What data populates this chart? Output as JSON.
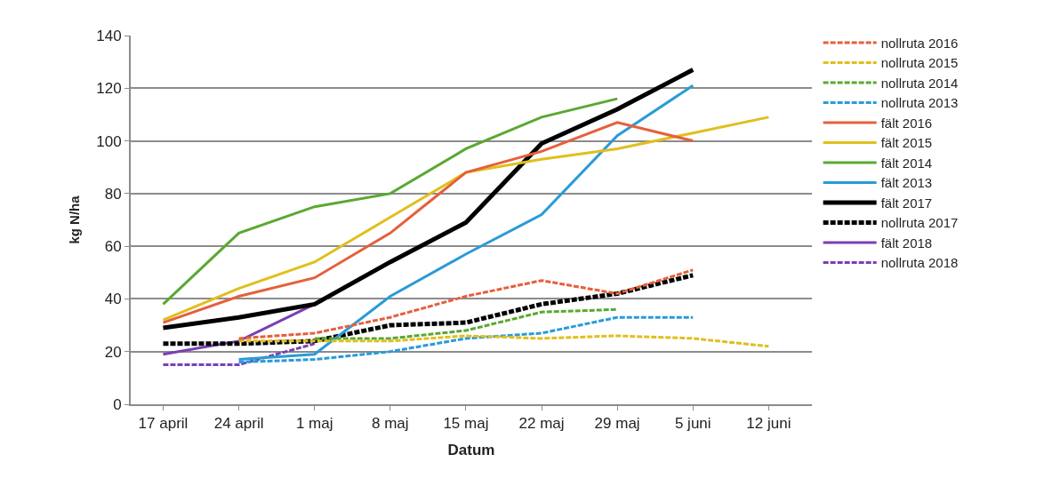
{
  "chart_data": {
    "type": "line",
    "xlabel": "Datum",
    "ylabel": "kg N/ha",
    "x": [
      "--04-17",
      "--04-24",
      "--05-01",
      "--05-08",
      "--05-15",
      "--05-22",
      "--05-29",
      "--06-05",
      "--06-12"
    ],
    "xlim": [
      "--04-14",
      "--06-16"
    ],
    "xticks": [
      {
        "value": "--04-17",
        "label": "17 april"
      },
      {
        "value": "--04-24",
        "label": "24 april"
      },
      {
        "value": "--05-01",
        "label": "1 maj"
      },
      {
        "value": "--05-08",
        "label": "8 maj"
      },
      {
        "value": "--05-15",
        "label": "15 maj"
      },
      {
        "value": "--05-22",
        "label": "22 maj"
      },
      {
        "value": "--05-29",
        "label": "29 maj"
      },
      {
        "value": "--06-05",
        "label": "5 juni"
      },
      {
        "value": "--06-12",
        "label": "12 juni"
      }
    ],
    "ylim": [
      0,
      140
    ],
    "yticks": [
      0,
      20,
      40,
      60,
      80,
      100,
      120,
      140
    ],
    "grid": "y",
    "legend": "right",
    "marker": "none",
    "series": [
      {
        "name": "nollruta 2016",
        "color": "#e5603b",
        "line_style": "dashed",
        "values": [
          null,
          25,
          27,
          33,
          41,
          47,
          42,
          51,
          null
        ]
      },
      {
        "name": "nollruta 2015",
        "color": "#e0bf1c",
        "line_style": "dashed",
        "values": [
          null,
          24,
          24,
          24,
          26,
          25,
          26,
          25,
          22
        ]
      },
      {
        "name": "nollruta 2014",
        "color": "#5aa832",
        "line_style": "dashed",
        "values": [
          null,
          null,
          25,
          25,
          28,
          35,
          36,
          null,
          null
        ]
      },
      {
        "name": "nollruta 2013",
        "color": "#2a9bd6",
        "line_style": "dashed",
        "values": [
          null,
          16,
          17,
          20,
          25,
          27,
          33,
          33,
          null
        ]
      },
      {
        "name": "fält 2016",
        "color": "#e5603b",
        "line_style": "solid",
        "values": [
          31,
          41,
          48,
          65,
          88,
          96,
          107,
          100,
          null
        ]
      },
      {
        "name": "fält 2015",
        "color": "#e0bf1c",
        "line_style": "solid",
        "values": [
          32,
          44,
          54,
          71,
          88,
          93,
          97,
          103,
          109
        ]
      },
      {
        "name": "fält 2014",
        "color": "#5aa832",
        "line_style": "solid",
        "values": [
          38,
          65,
          75,
          80,
          97,
          109,
          116,
          null,
          null
        ]
      },
      {
        "name": "fält 2013",
        "color": "#2a9bd6",
        "line_style": "solid",
        "values": [
          null,
          17,
          19,
          41,
          57,
          72,
          102,
          121,
          null
        ]
      },
      {
        "name": "fält 2017",
        "color": "#000000",
        "line_style": "solid",
        "values": [
          29,
          33,
          38,
          54,
          69,
          99,
          112,
          127,
          null
        ]
      },
      {
        "name": "nollruta 2017",
        "color": "#000000",
        "line_style": "dashed",
        "values": [
          23,
          23,
          24,
          30,
          31,
          38,
          42,
          49,
          null
        ]
      },
      {
        "name": "fält 2018",
        "color": "#7a3fb5",
        "line_style": "solid",
        "values": [
          19,
          24,
          38,
          null,
          null,
          null,
          null,
          null,
          null
        ]
      },
      {
        "name": "nollruta 2018",
        "color": "#7a3fb5",
        "line_style": "dashed",
        "values": [
          15,
          15,
          23,
          null,
          null,
          null,
          null,
          null,
          null
        ]
      }
    ]
  }
}
